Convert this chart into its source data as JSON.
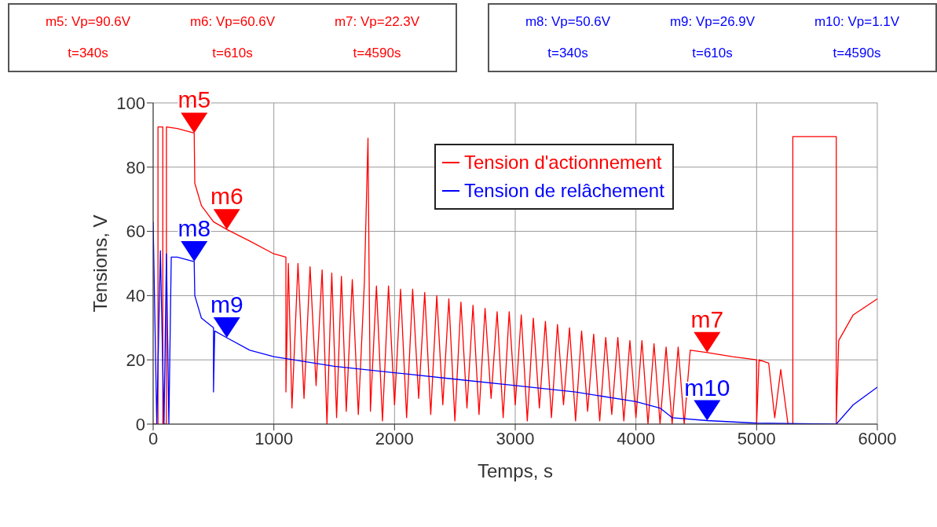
{
  "chart_data": {
    "type": "line",
    "xlabel": "Temps, s",
    "ylabel": "Tensions, V",
    "xlim": [
      0,
      6000
    ],
    "xticks": [
      0,
      1000,
      2000,
      3000,
      4000,
      5000,
      6000
    ],
    "ylim": [
      0,
      100
    ],
    "yticks": [
      0,
      20,
      40,
      60,
      80,
      100
    ],
    "grid": true,
    "legend": "top right",
    "line_style": "solid",
    "marker": "none",
    "series": [
      {
        "name": "Tension d'actionnement",
        "color": "#ff0000",
        "x": [
          0,
          40,
          40,
          80,
          80,
          110,
          110,
          200,
          340,
          345,
          400,
          500,
          610,
          800,
          1000,
          1100,
          1100,
          1120,
          1150,
          1200,
          1250,
          1300,
          1350,
          1400,
          1440,
          1480,
          1520,
          1560,
          1600,
          1650,
          1700,
          1750,
          1780,
          1790,
          1800,
          1850,
          1900,
          1950,
          2000,
          2050,
          2100,
          2150,
          2200,
          2250,
          2300,
          2350,
          2400,
          2450,
          2500,
          2550,
          2600,
          2650,
          2700,
          2750,
          2800,
          2850,
          2900,
          2950,
          3000,
          3050,
          3100,
          3150,
          3200,
          3250,
          3300,
          3350,
          3400,
          3450,
          3500,
          3550,
          3600,
          3650,
          3700,
          3750,
          3800,
          3850,
          3900,
          3950,
          4000,
          4050,
          4100,
          4150,
          4200,
          4250,
          4300,
          4350,
          4400,
          4450,
          4590,
          4800,
          5000,
          5000,
          5020,
          5100,
          5150,
          5200,
          5260,
          5300,
          5300,
          5660,
          5660,
          5680,
          5800,
          6000
        ],
        "values": [
          0,
          0,
          92.5,
          92.5,
          0,
          0,
          92.5,
          92,
          90.6,
          75,
          68,
          63,
          60.6,
          57,
          53,
          52,
          10,
          50,
          5,
          50,
          8,
          49,
          12,
          48,
          0,
          47,
          2,
          46,
          4,
          45,
          3,
          44,
          89,
          44,
          4,
          43,
          1,
          43,
          6,
          42,
          2,
          42,
          8,
          41,
          3,
          40,
          6,
          39,
          1,
          38,
          5,
          37,
          3,
          36,
          8,
          35,
          2,
          35,
          6,
          34,
          1,
          33,
          5,
          32,
          2,
          31,
          6,
          30,
          1,
          29,
          4,
          28,
          1,
          27,
          3,
          27,
          1,
          26,
          2,
          26,
          0,
          25,
          0,
          24,
          0,
          24,
          0,
          23,
          22.3,
          21,
          20,
          0,
          20,
          19,
          2,
          17,
          0,
          0,
          89.5,
          89.5,
          0,
          26,
          34,
          39
        ]
      },
      {
        "name": "Tension de relâchement",
        "color": "#0000ff",
        "x": [
          0,
          30,
          60,
          90,
          110,
          130,
          150,
          200,
          340,
          345,
          400,
          500,
          500,
          510,
          610,
          800,
          1000,
          1500,
          2000,
          2500,
          3000,
          3500,
          4000,
          4200,
          4300,
          4590,
          5000,
          5660,
          5800,
          6000
        ],
        "values": [
          63,
          0,
          54,
          0,
          53,
          0,
          52,
          52,
          50.6,
          40,
          33,
          30,
          10,
          29,
          26.9,
          23,
          21,
          18,
          16,
          14,
          12,
          10,
          7,
          5,
          2,
          1.1,
          0.3,
          0,
          6,
          11.5
        ]
      }
    ],
    "annotations": [
      {
        "text": "m5",
        "x": 340,
        "y": 90.6
      },
      {
        "text": "m6",
        "x": 610,
        "y": 60.6
      },
      {
        "text": "m7",
        "x": 4590,
        "y": 22.3
      },
      {
        "text": "m8",
        "x": 340,
        "y": 50.6
      },
      {
        "text": "m9",
        "x": 610,
        "y": 26.9
      },
      {
        "text": "m10",
        "x": 4590,
        "y": 1.1
      },
      "m5: Vp=90.6V",
      "t=340s",
      "m6: Vp=60.6V",
      "t=610s",
      "m7: Vp=22.3V",
      "t=4590s",
      "m8: Vp=50.6V",
      "t=340s",
      "m9: Vp=26.9V",
      "t=610s",
      "m10: Vp=1.1V",
      "t=4590s"
    ]
  }
}
